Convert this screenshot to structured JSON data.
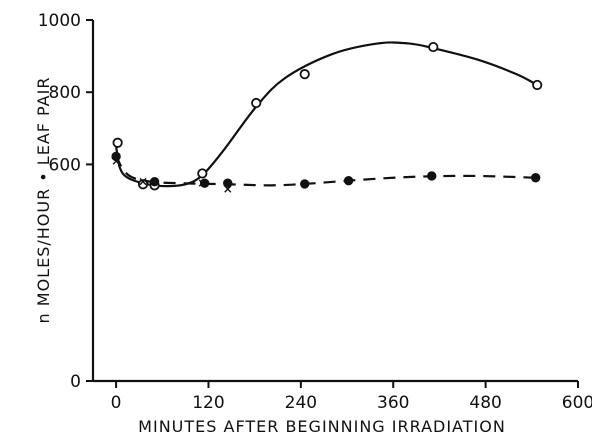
{
  "chart_data": {
    "type": "scatter",
    "xlabel": "MINUTES AFTER BEGINNING IRRADIATION",
    "ylabel": "n MOLES/HOUR • LEAF PAIR",
    "xlim": [
      -30,
      600
    ],
    "ylim": [
      0,
      1000
    ],
    "x_ticks": [
      0,
      120,
      240,
      360,
      480,
      600
    ],
    "y_ticks": [
      0,
      600,
      800,
      1000
    ],
    "grid": false,
    "legend": "none",
    "series": [
      {
        "marker": "open-circle",
        "line": "solid",
        "points": [
          {
            "x": 2,
            "y": 660
          },
          {
            "x": 35,
            "y": 545
          },
          {
            "x": 50,
            "y": 542
          },
          {
            "x": 112,
            "y": 575
          },
          {
            "x": 182,
            "y": 770
          },
          {
            "x": 245,
            "y": 850
          },
          {
            "x": 412,
            "y": 925
          },
          {
            "x": 547,
            "y": 820
          }
        ],
        "curve": [
          {
            "x": 0,
            "y": 650
          },
          {
            "x": 5,
            "y": 590
          },
          {
            "x": 15,
            "y": 563
          },
          {
            "x": 35,
            "y": 548
          },
          {
            "x": 60,
            "y": 540
          },
          {
            "x": 90,
            "y": 545
          },
          {
            "x": 112,
            "y": 570
          },
          {
            "x": 140,
            "y": 640
          },
          {
            "x": 182,
            "y": 760
          },
          {
            "x": 220,
            "y": 840
          },
          {
            "x": 280,
            "y": 905
          },
          {
            "x": 340,
            "y": 935
          },
          {
            "x": 380,
            "y": 935
          },
          {
            "x": 412,
            "y": 922
          },
          {
            "x": 470,
            "y": 890
          },
          {
            "x": 520,
            "y": 850
          },
          {
            "x": 547,
            "y": 820
          }
        ]
      },
      {
        "marker": "filled-circle",
        "line": "dashed",
        "points": [
          {
            "x": 0,
            "y": 622
          },
          {
            "x": 50,
            "y": 552
          },
          {
            "x": 115,
            "y": 548
          },
          {
            "x": 145,
            "y": 548
          },
          {
            "x": 245,
            "y": 546
          },
          {
            "x": 302,
            "y": 555
          },
          {
            "x": 410,
            "y": 568
          },
          {
            "x": 545,
            "y": 563
          }
        ],
        "curve": [
          {
            "x": 0,
            "y": 625
          },
          {
            "x": 8,
            "y": 590
          },
          {
            "x": 20,
            "y": 565
          },
          {
            "x": 45,
            "y": 552
          },
          {
            "x": 80,
            "y": 548
          },
          {
            "x": 145,
            "y": 545
          },
          {
            "x": 200,
            "y": 542
          },
          {
            "x": 245,
            "y": 546
          },
          {
            "x": 302,
            "y": 555
          },
          {
            "x": 360,
            "y": 563
          },
          {
            "x": 410,
            "y": 567
          },
          {
            "x": 470,
            "y": 568
          },
          {
            "x": 545,
            "y": 563
          }
        ]
      },
      {
        "marker": "x",
        "line": "none",
        "points": [
          {
            "x": 0,
            "y": 610
          },
          {
            "x": 35,
            "y": 553
          },
          {
            "x": 112,
            "y": 548
          },
          {
            "x": 145,
            "y": 532
          }
        ]
      }
    ]
  }
}
